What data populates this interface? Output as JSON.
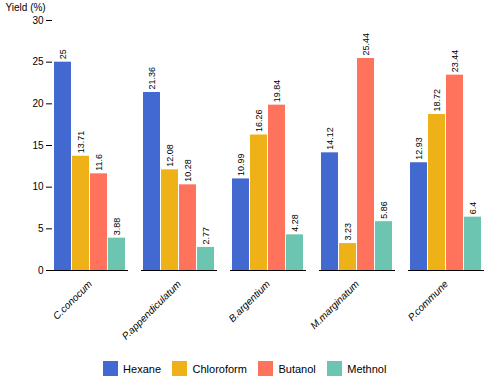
{
  "chart_data": {
    "type": "bar",
    "categories": [
      "C.conocum",
      "P.appendiculatum",
      "B.argentium",
      "M.marginatum",
      "P.commune"
    ],
    "series": [
      {
        "name": "Hexane",
        "values": [
          25,
          21.36,
          10.99,
          14.12,
          12.93
        ]
      },
      {
        "name": "Chloroform",
        "values": [
          13.71,
          12.08,
          16.26,
          3.23,
          18.72
        ]
      },
      {
        "name": "Butanol",
        "values": [
          11.6,
          10.28,
          19.84,
          25.44,
          23.44
        ]
      },
      {
        "name": "Methnol",
        "values": [
          3.88,
          2.77,
          4.28,
          5.86,
          6.4
        ]
      }
    ],
    "ylabel": "Yield (%)",
    "ylim": [
      0,
      30
    ],
    "yticks": [
      0,
      5,
      10,
      15,
      20,
      25,
      30
    ],
    "data_labels": true,
    "legend": "bottom",
    "grid": false
  }
}
